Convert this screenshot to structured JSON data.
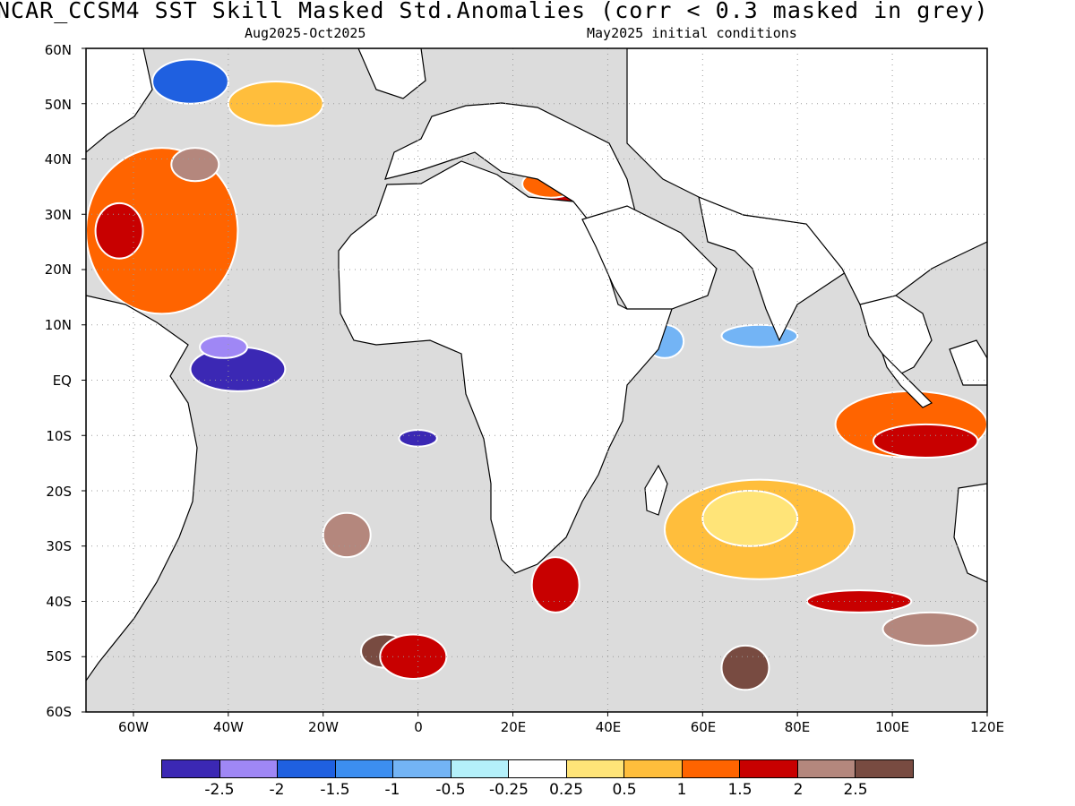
{
  "header": {
    "title": "NCAR_CCSM4  SST Skill Masked Std.Anomalies (corr < 0.3 masked in grey)",
    "valid_period": "Aug2025-Oct2025",
    "initial_conditions": "May2025 initial conditions"
  },
  "map": {
    "lon_range": [
      -70,
      120
    ],
    "lat_range": [
      -60,
      60
    ],
    "gridlines": "dotted",
    "mask_color": "#dcdcdc",
    "land_color": "#ffffff",
    "lat_labels": [
      "60N",
      "50N",
      "40N",
      "30N",
      "20N",
      "10N",
      "EQ",
      "10S",
      "20S",
      "30S",
      "40S",
      "50S",
      "60S"
    ],
    "lon_labels": [
      "60W",
      "40W",
      "20W",
      "0",
      "20E",
      "40E",
      "60E",
      "80E",
      "100E",
      "120E"
    ]
  },
  "colorbar": {
    "colors": [
      "#3b28b4",
      "#9f87f5",
      "#1f60e0",
      "#3c8ef0",
      "#73b4f5",
      "#b4f0fa",
      "#ffffff",
      "#ffe478",
      "#ffbe3c",
      "#ff6400",
      "#c80000",
      "#b4877d",
      "#784b41"
    ],
    "labels": [
      "-2.5",
      "-2",
      "-1.5",
      "-1",
      "-0.5",
      "-0.25",
      "0.25",
      "0.5",
      "1",
      "1.5",
      "2",
      "2.5"
    ]
  },
  "anomaly_regions": [
    {
      "name": "north-atlantic-subtropical-warm",
      "color": "#ff6400",
      "lon": [
        -70,
        -38
      ],
      "lat": [
        12,
        42
      ]
    },
    {
      "name": "north-atlantic-core-warm",
      "color": "#c80000",
      "lon": [
        -68,
        -58
      ],
      "lat": [
        22,
        32
      ]
    },
    {
      "name": "north-atlantic-brown",
      "color": "#b4877d",
      "lon": [
        -52,
        -42
      ],
      "lat": [
        36,
        42
      ]
    },
    {
      "name": "labrador-sea-cool",
      "color": "#1f60e0",
      "lon": [
        -56,
        -40
      ],
      "lat": [
        50,
        58
      ]
    },
    {
      "name": "iceland-orange",
      "color": "#ffbe3c",
      "lon": [
        -40,
        -20
      ],
      "lat": [
        46,
        54
      ]
    },
    {
      "name": "gulf-of-guinea-cool",
      "color": "#3b28b4",
      "lon": [
        -48,
        -28
      ],
      "lat": [
        -2,
        6
      ]
    },
    {
      "name": "tropical-atlantic-lavender",
      "color": "#9f87f5",
      "lon": [
        -46,
        -36
      ],
      "lat": [
        4,
        8
      ]
    },
    {
      "name": "eastern-med-warm",
      "color": "#c80000",
      "lon": [
        26,
        36
      ],
      "lat": [
        32,
        36
      ]
    },
    {
      "name": "eastern-med-orange",
      "color": "#ff6400",
      "lon": [
        22,
        34
      ],
      "lat": [
        33,
        38
      ]
    },
    {
      "name": "arabian-sea-cool",
      "color": "#73b4f5",
      "lon": [
        64,
        80
      ],
      "lat": [
        6,
        10
      ]
    },
    {
      "name": "west-indian-cool",
      "color": "#73b4f5",
      "lon": [
        48,
        56
      ],
      "lat": [
        4,
        10
      ]
    },
    {
      "name": "eastern-indian-warm",
      "color": "#ff6400",
      "lon": [
        88,
        120
      ],
      "lat": [
        -14,
        -2
      ]
    },
    {
      "name": "eastern-indian-core",
      "color": "#c80000",
      "lon": [
        96,
        118
      ],
      "lat": [
        -14,
        -8
      ]
    },
    {
      "name": "south-indian-yellow",
      "color": "#ffbe3c",
      "lon": [
        52,
        92
      ],
      "lat": [
        -36,
        -18
      ]
    },
    {
      "name": "south-indian-light",
      "color": "#ffe478",
      "lon": [
        60,
        80
      ],
      "lat": [
        -30,
        -20
      ]
    },
    {
      "name": "southern-ocean-red",
      "color": "#c80000",
      "lon": [
        82,
        104
      ],
      "lat": [
        -42,
        -38
      ]
    },
    {
      "name": "southern-ocean-brown",
      "color": "#b4877d",
      "lon": [
        98,
        118
      ],
      "lat": [
        -48,
        -42
      ]
    },
    {
      "name": "south-atlantic-brown",
      "color": "#784b41",
      "lon": [
        -12,
        -2
      ],
      "lat": [
        -52,
        -46
      ]
    },
    {
      "name": "south-atlantic-red",
      "color": "#c80000",
      "lon": [
        -8,
        6
      ],
      "lat": [
        -54,
        -46
      ]
    },
    {
      "name": "agulhas-red",
      "color": "#c80000",
      "lon": [
        24,
        34
      ],
      "lat": [
        -42,
        -32
      ]
    },
    {
      "name": "south-atlantic-pink",
      "color": "#b4877d",
      "lon": [
        -20,
        -10
      ],
      "lat": [
        -32,
        -24
      ]
    },
    {
      "name": "angola-cool",
      "color": "#3b28b4",
      "lon": [
        -4,
        4
      ],
      "lat": [
        -12,
        -9
      ]
    },
    {
      "name": "kerguelen-brown",
      "color": "#784b41",
      "lon": [
        64,
        74
      ],
      "lat": [
        -56,
        -48
      ]
    }
  ]
}
